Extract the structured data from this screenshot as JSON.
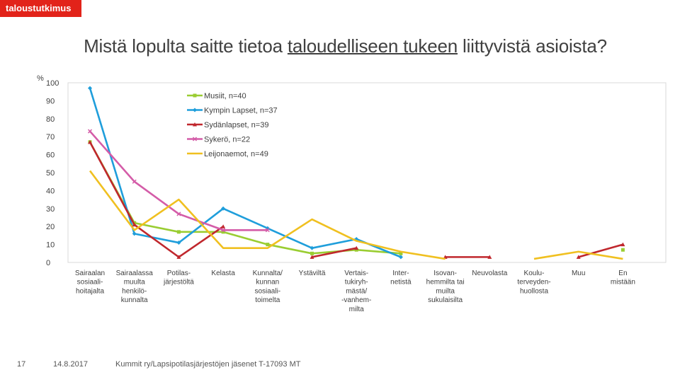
{
  "logo": "taloustutkimus",
  "title": {
    "before": "Mistä lopulta saitte tietoa ",
    "underlined": "taloudelliseen tukeen",
    "after": " liittyvistä asioista?"
  },
  "footer": {
    "page_number": "17",
    "date": "14.8.2017",
    "source": "Kummit ry/Lapsipotilasjärjestöjen jäsenet T-17093 MT"
  },
  "chart_data": {
    "type": "line",
    "title": "Mistä lopulta saitte tietoa taloudelliseen tukeen liittyvistä asioista?",
    "ylabel": "%",
    "ylim": [
      0,
      100
    ],
    "yticks": [
      0,
      10,
      20,
      30,
      40,
      50,
      60,
      70,
      80,
      90,
      100
    ],
    "grid": false,
    "legend_position": "top-center",
    "categories": [
      [
        "Sairaalan",
        "sosiaali-",
        "hoitajalta"
      ],
      [
        "Sairaalassa",
        "muulta",
        "henkilö-",
        "kunnalta"
      ],
      [
        "Potilas-",
        "järjestöltä"
      ],
      [
        "Kelasta"
      ],
      [
        "Kunnalta/",
        "kunnan",
        "sosiaali-",
        "toimelta"
      ],
      [
        "Ystäviltä"
      ],
      [
        "Vertais-",
        "tukiryh-",
        "mästä/",
        "-vanhem-",
        "milta"
      ],
      [
        "Inter-",
        "netistä"
      ],
      [
        "Isovan-",
        "hemmilta tai",
        "muilta",
        "sukulaisilta"
      ],
      [
        "Neuvolasta"
      ],
      [
        "Koulu-",
        "terveyden-",
        "huollosta"
      ],
      [
        "Muu"
      ],
      [
        "En",
        "mistään"
      ]
    ],
    "series": [
      {
        "name": "Musiit, n=40",
        "color": "#9ACD32",
        "values": [
          67,
          22,
          17,
          17,
          10,
          5,
          7,
          5,
          null,
          null,
          null,
          null,
          7
        ]
      },
      {
        "name": "Kympin Lapset, n=37",
        "color": "#1F9EDB",
        "values": [
          97,
          16,
          11,
          30,
          19,
          8,
          13,
          3,
          null,
          null,
          null,
          null,
          null
        ]
      },
      {
        "name": "Sydänlapset, n=39",
        "color": "#C0272D",
        "values": [
          67,
          21,
          3,
          20,
          null,
          3,
          8,
          null,
          3,
          3,
          null,
          3,
          10
        ]
      },
      {
        "name": "Sykerö, n=22",
        "color": "#D45CA8",
        "values": [
          73,
          45,
          27,
          18,
          18,
          null,
          null,
          null,
          null,
          null,
          null,
          null,
          null
        ]
      },
      {
        "name": "Leijonaemot, n=49",
        "color": "#F0C020",
        "values": [
          51,
          18,
          35,
          8,
          8,
          24,
          12,
          6,
          2,
          null,
          2,
          6,
          2
        ]
      }
    ]
  }
}
